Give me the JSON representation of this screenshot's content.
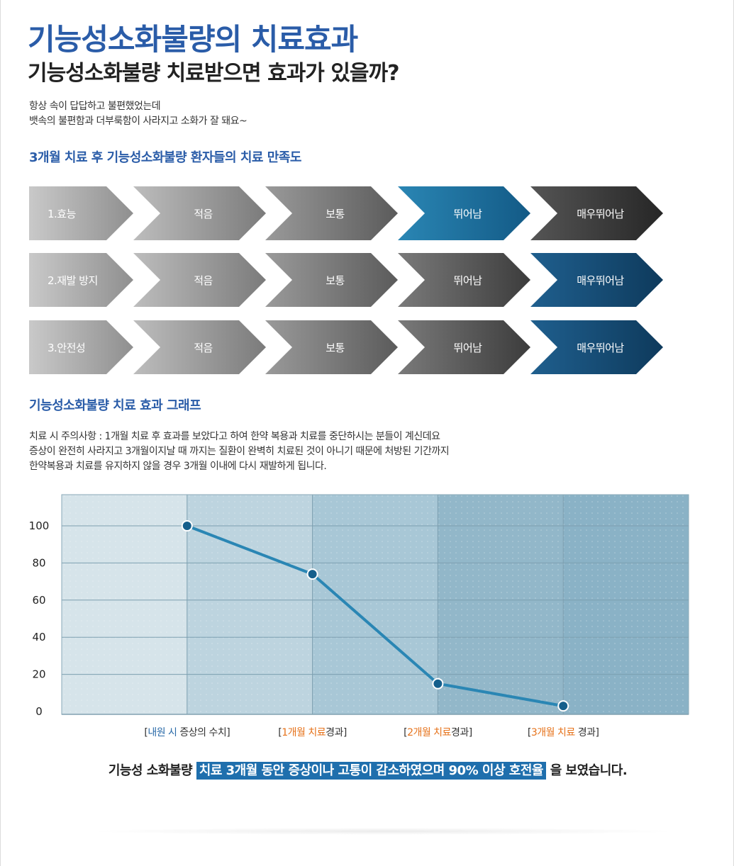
{
  "header": {
    "title": "기능성소화불량의 치료효과",
    "subtitle": "기능성소화불량 치료받으면 효과가 있을까?",
    "intro_line1": "항상 속이 답답하고 불편했었는데",
    "intro_line2": "뱃속의 불편함과 더부룩함이 사라지고 소화가 잘 돼요~"
  },
  "satisfaction": {
    "title": "3개월 치료 후 기능성소화불량 환자들의 치료 만족도",
    "rows": [
      {
        "label": "1.효능",
        "levels": [
          "적음",
          "보통",
          "뛰어남",
          "매우뛰어남"
        ],
        "selected": "뛰어남"
      },
      {
        "label": "2.재발 방지",
        "levels": [
          "적음",
          "보통",
          "뛰어남",
          "매우뛰어남"
        ],
        "selected": "매우뛰어남"
      },
      {
        "label": "3.안전성",
        "levels": [
          "적음",
          "보통",
          "뛰어남",
          "매우뛰어남"
        ],
        "selected": "매우뛰어남"
      }
    ],
    "colors": {
      "selected_teal": "#2a86b4",
      "selected_navy": "#0e3a5c",
      "unselected": "#7b7b7b"
    }
  },
  "graph_section": {
    "title": "기능성소화불량 치료 효과 그래프",
    "caution_line1": "치료 시 주의사항 : 1개월 치료 후 효과를 보았다고 하여 한약 복용과 치료를 중단하시는 분들이 계신데요",
    "caution_line2": "증상이 완전히 사라지고 3개월이지날 때 까지는 질환이 완벽히 치료된 것이 아니기 때문에 처방된 기간까지",
    "caution_line3": "한약복용과 치료를 유지하지 않을 경우 3개월 이내에 다시 재발하게 됩니다."
  },
  "chart_data": {
    "type": "line",
    "categories": [
      {
        "pre": "[",
        "hl": "내원 시",
        "rest": " 증상의 수치]",
        "hl_color": "blue"
      },
      {
        "pre": "[",
        "hl": "1개월 치료",
        "rest": "경과]",
        "hl_color": "orange"
      },
      {
        "pre": "[",
        "hl": "2개월 치료",
        "rest": "경과]",
        "hl_color": "orange"
      },
      {
        "pre": "[",
        "hl": "3개월 치료",
        "rest": " 경과]",
        "hl_color": "orange"
      }
    ],
    "values": [
      100,
      74,
      15,
      3
    ],
    "yticks": [
      0,
      20,
      40,
      60,
      80,
      100
    ],
    "ylim": [
      0,
      100
    ],
    "title": "",
    "xlabel": "",
    "ylabel": "",
    "grid": true,
    "line_color": "#2a86b4",
    "marker_color": "#155f8c"
  },
  "summary": {
    "before": "기능성 소화불량 ",
    "highlight": "치료 3개월 동안 증상이나 고통이 감소하였으며 90% 이상 호전율",
    "after": " 을 보였습니다."
  }
}
